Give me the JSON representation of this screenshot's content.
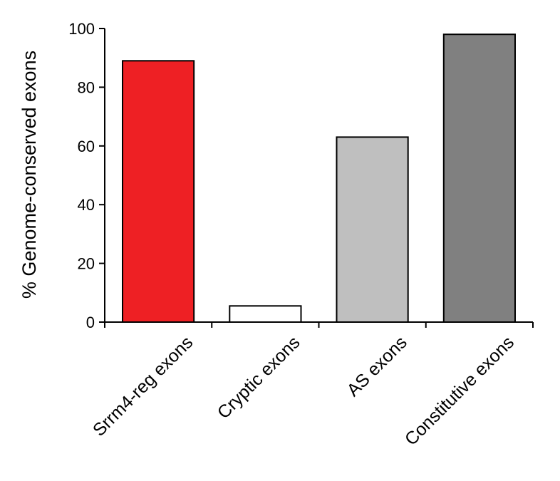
{
  "chart_data": {
    "type": "bar",
    "title": "",
    "xlabel": "",
    "ylabel": "% Genome-conserved exons",
    "ylim": [
      0,
      100
    ],
    "yticks": [
      0,
      20,
      40,
      60,
      80,
      100
    ],
    "grid": false,
    "categories": [
      "Srrm4-reg exons",
      "Cryptic exons",
      "AS exons",
      "Constitutive exons"
    ],
    "values": [
      89,
      5.5,
      63,
      98
    ],
    "colors": [
      "#ee2024",
      "#ffffff",
      "#bfbfbf",
      "#808080"
    ]
  }
}
